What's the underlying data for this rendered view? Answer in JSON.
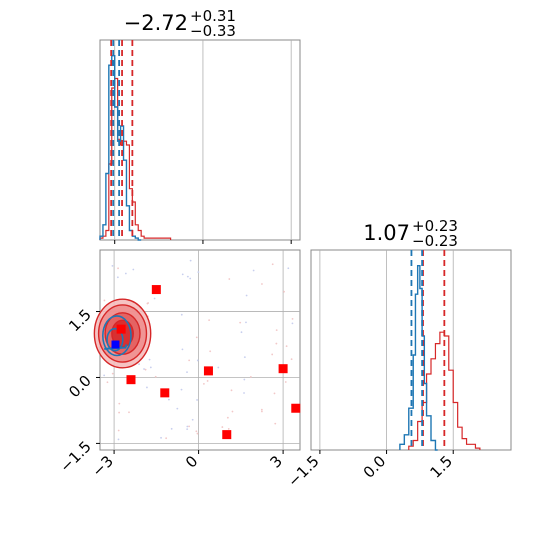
{
  "chart_data": {
    "type": "corner",
    "colors": {
      "blue": "#1f77b4",
      "red": "#d62728",
      "marker": "#ff0000",
      "grid": "#b0b0b0"
    },
    "panels": [
      {
        "id": "p1-hist",
        "kind": "histogram",
        "title": {
          "value": "−2.72",
          "sup": "+0.31",
          "sub": "−0.33"
        },
        "xlim": [
          -3.5,
          0.3
        ],
        "xlim_full": [
          -3.5,
          3.3
        ],
        "grid_x": [
          -3,
          0,
          3
        ],
        "x_tick_labels": [],
        "hist_blue": {
          "x": [
            -3.5,
            -3.4,
            -3.3,
            -3.2,
            -3.1,
            -3.0,
            -2.9,
            -2.8,
            -2.7,
            -2.6,
            -2.5,
            -2.4,
            -2.3,
            -2.2
          ],
          "y": [
            0.02,
            0.08,
            0.35,
            0.92,
            0.97,
            0.7,
            0.52,
            0.6,
            0.42,
            0.18,
            0.05,
            0.02,
            0.01,
            0.0
          ]
        },
        "hist_red": {
          "x": [
            -3.5,
            -3.4,
            -3.3,
            -3.2,
            -3.1,
            -3.0,
            -2.9,
            -2.8,
            -2.7,
            -2.6,
            -2.5,
            -2.4,
            -2.3,
            -2.2,
            -2.1,
            -2.0,
            -1.8,
            -1.2
          ],
          "y": [
            0.01,
            0.02,
            0.05,
            0.4,
            0.8,
            0.85,
            0.53,
            0.5,
            0.52,
            0.5,
            0.27,
            0.2,
            0.08,
            0.05,
            0.02,
            0.01,
            0.01,
            0.01
          ]
        },
        "lines_blue": [
          -3.05,
          -2.85
        ],
        "lines_red": [
          -3.12,
          -2.75,
          -2.4
        ]
      },
      {
        "id": "p2-hist",
        "kind": "histogram",
        "title": {
          "value": "1.07",
          "sup": "+0.23",
          "sub": "−0.23"
        },
        "xlim": [
          -1.7,
          2.8
        ],
        "grid_x": [
          -1.5,
          0.0,
          1.5
        ],
        "x_tick_labels": [
          "−1.5",
          "0.0",
          "1.5"
        ],
        "hist_blue": {
          "x": [
            0.3,
            0.4,
            0.5,
            0.6,
            0.65,
            0.7,
            0.75,
            0.8,
            0.85,
            0.9,
            1.0,
            1.1
          ],
          "y": [
            0.03,
            0.08,
            0.22,
            0.5,
            0.82,
            0.97,
            0.85,
            0.6,
            0.35,
            0.18,
            0.05,
            0.0
          ]
        },
        "hist_red": {
          "x": [
            0.5,
            0.6,
            0.7,
            0.8,
            0.9,
            1.0,
            1.1,
            1.2,
            1.3,
            1.4,
            1.5,
            1.6,
            1.7,
            1.8,
            2.0
          ],
          "y": [
            0.02,
            0.05,
            0.15,
            0.25,
            0.4,
            0.48,
            0.56,
            0.62,
            0.6,
            0.42,
            0.25,
            0.12,
            0.06,
            0.03,
            0.01
          ]
        },
        "lines_blue": [
          0.56,
          0.8
        ],
        "lines_red": [
          0.82,
          1.3
        ]
      },
      {
        "id": "p3-2d",
        "kind": "scatter2d",
        "xlim": [
          -3.5,
          3.6
        ],
        "ylim": [
          -1.65,
          2.9
        ],
        "grid_x": [
          -3,
          0,
          3
        ],
        "grid_y": [
          -1.5,
          0.0,
          1.5
        ],
        "x_tick_labels": [
          "−3",
          "0",
          "3"
        ],
        "y_tick_labels": [
          "−1.5",
          "0.0",
          "1.5"
        ],
        "red_contour_center": [
          -2.7,
          1.0
        ],
        "red_contour_radii": [
          [
            1.0,
            0.78
          ],
          [
            0.85,
            0.65
          ],
          [
            0.62,
            0.47
          ],
          [
            0.38,
            0.3
          ]
        ],
        "blue_contour_center": [
          -2.9,
          0.95
        ],
        "red_squares": [
          {
            "x": -1.5,
            "y": 2.0
          },
          {
            "x": -2.75,
            "y": 1.1
          },
          {
            "x": -2.4,
            "y": -0.05
          },
          {
            "x": -1.2,
            "y": -0.35
          },
          {
            "x": 0.35,
            "y": 0.15
          },
          {
            "x": 3.0,
            "y": 0.2
          },
          {
            "x": 3.45,
            "y": -0.7
          },
          {
            "x": 1.0,
            "y": -1.3
          }
        ],
        "blue_squares": [
          {
            "x": -2.95,
            "y": 0.75
          }
        ]
      }
    ]
  }
}
